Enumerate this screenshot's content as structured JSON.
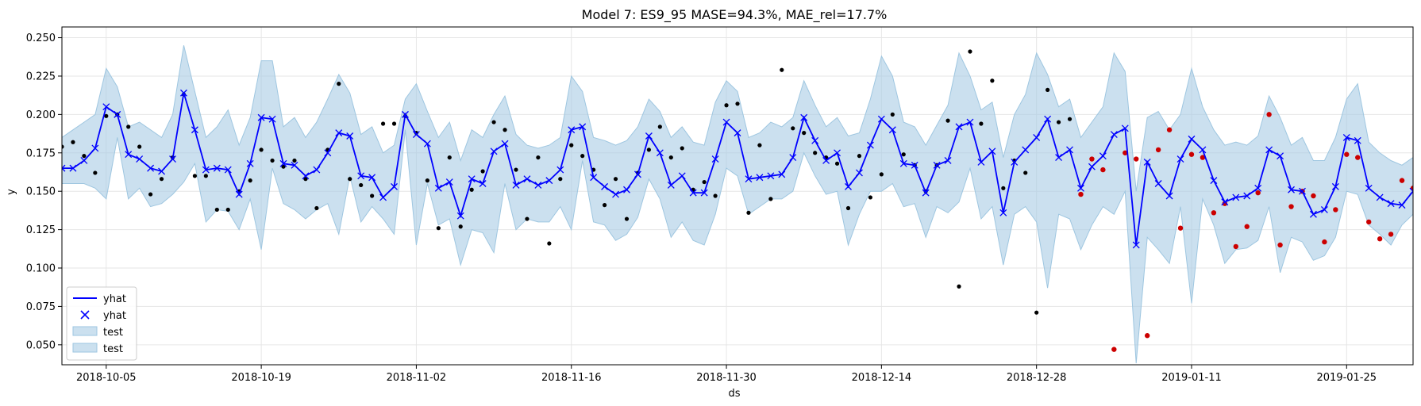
{
  "chart_data": {
    "type": "line",
    "title": "Model 7: ES9_95 MASE=94.3%, MAE_rel=17.7%",
    "xlabel": "ds",
    "ylabel": "y",
    "xlim": [
      "2018-10-01",
      "2019-01-31"
    ],
    "ylim": [
      0.037,
      0.257
    ],
    "grid": true,
    "legend_position": "lower-left",
    "x_ticks": [
      "2018-10-05",
      "2018-10-19",
      "2018-11-02",
      "2018-11-16",
      "2018-11-30",
      "2018-12-14",
      "2018-12-28",
      "2019-01-11",
      "2019-01-25"
    ],
    "y_ticks": [
      "0.050",
      "0.075",
      "0.100",
      "0.125",
      "0.150",
      "0.175",
      "0.200",
      "0.225",
      "0.250"
    ],
    "legend": [
      "yhat",
      "yhat",
      "test",
      "test"
    ],
    "colors": {
      "yhat": "#0000ff",
      "band_fill": "#a8cce4",
      "band_edge": "#9ec6e0",
      "actual": "#000000",
      "test_actual": "#cc0000",
      "grid": "#e6e6e6"
    },
    "start_date": "2018-10-01",
    "yhat": [
      0.165,
      0.165,
      0.17,
      0.178,
      0.205,
      0.2,
      0.174,
      0.171,
      0.165,
      0.163,
      0.171,
      0.214,
      0.19,
      0.164,
      0.165,
      0.164,
      0.148,
      0.168,
      0.198,
      0.197,
      0.168,
      0.167,
      0.16,
      0.164,
      0.175,
      0.188,
      0.186,
      0.16,
      0.159,
      0.146,
      0.153,
      0.2,
      0.187,
      0.181,
      0.152,
      0.156,
      0.134,
      0.158,
      0.155,
      0.176,
      0.181,
      0.154,
      0.158,
      0.154,
      0.157,
      0.164,
      0.19,
      0.192,
      0.159,
      0.153,
      0.148,
      0.151,
      0.161,
      0.186,
      0.175,
      0.154,
      0.16,
      0.149,
      0.149,
      0.171,
      0.195,
      0.188,
      0.158,
      0.159,
      0.16,
      0.161,
      0.172,
      0.198,
      0.183,
      0.17,
      0.175,
      0.153,
      0.162,
      0.18,
      0.197,
      0.19,
      0.168,
      0.167,
      0.149,
      0.167,
      0.17,
      0.192,
      0.195,
      0.169,
      0.176,
      0.136,
      0.169,
      0.177,
      0.185,
      0.197,
      0.172,
      0.177,
      0.152,
      0.166,
      0.173,
      0.187,
      0.191,
      0.115,
      0.169,
      0.155,
      0.147,
      0.171,
      0.184,
      0.177,
      0.157,
      0.143,
      0.146,
      0.147,
      0.152,
      0.177,
      0.173,
      0.151,
      0.15,
      0.135,
      0.138,
      0.153,
      0.185,
      0.183,
      0.152,
      0.146,
      0.142,
      0.141,
      0.15
    ],
    "upper": [
      0.185,
      0.19,
      0.195,
      0.2,
      0.23,
      0.218,
      0.192,
      0.195,
      0.19,
      0.185,
      0.2,
      0.245,
      0.215,
      0.185,
      0.192,
      0.203,
      0.18,
      0.198,
      0.235,
      0.235,
      0.192,
      0.198,
      0.185,
      0.195,
      0.21,
      0.226,
      0.214,
      0.187,
      0.192,
      0.175,
      0.18,
      0.21,
      0.22,
      0.202,
      0.185,
      0.195,
      0.17,
      0.19,
      0.185,
      0.2,
      0.212,
      0.187,
      0.18,
      0.178,
      0.18,
      0.185,
      0.225,
      0.215,
      0.185,
      0.183,
      0.18,
      0.183,
      0.192,
      0.21,
      0.202,
      0.185,
      0.192,
      0.182,
      0.18,
      0.208,
      0.222,
      0.215,
      0.185,
      0.188,
      0.195,
      0.192,
      0.198,
      0.222,
      0.206,
      0.192,
      0.198,
      0.186,
      0.188,
      0.21,
      0.238,
      0.225,
      0.195,
      0.192,
      0.18,
      0.193,
      0.206,
      0.24,
      0.225,
      0.203,
      0.208,
      0.172,
      0.2,
      0.213,
      0.24,
      0.226,
      0.205,
      0.21,
      0.185,
      0.195,
      0.205,
      0.24,
      0.228,
      0.15,
      0.198,
      0.202,
      0.19,
      0.2,
      0.23,
      0.205,
      0.19,
      0.18,
      0.182,
      0.18,
      0.186,
      0.212,
      0.198,
      0.18,
      0.185,
      0.17,
      0.17,
      0.185,
      0.21,
      0.22,
      0.182,
      0.175,
      0.17,
      0.167,
      0.172
    ],
    "lower": [
      0.155,
      0.155,
      0.155,
      0.152,
      0.145,
      0.185,
      0.145,
      0.152,
      0.14,
      0.142,
      0.148,
      0.156,
      0.168,
      0.13,
      0.138,
      0.137,
      0.125,
      0.145,
      0.112,
      0.165,
      0.142,
      0.138,
      0.132,
      0.138,
      0.142,
      0.122,
      0.16,
      0.13,
      0.14,
      0.132,
      0.122,
      0.19,
      0.115,
      0.155,
      0.128,
      0.132,
      0.102,
      0.125,
      0.123,
      0.11,
      0.155,
      0.125,
      0.132,
      0.13,
      0.13,
      0.14,
      0.125,
      0.17,
      0.13,
      0.128,
      0.118,
      0.122,
      0.133,
      0.158,
      0.145,
      0.12,
      0.13,
      0.118,
      0.115,
      0.135,
      0.165,
      0.16,
      0.135,
      0.14,
      0.145,
      0.145,
      0.15,
      0.175,
      0.16,
      0.148,
      0.15,
      0.115,
      0.135,
      0.15,
      0.15,
      0.155,
      0.14,
      0.142,
      0.12,
      0.14,
      0.136,
      0.143,
      0.165,
      0.132,
      0.14,
      0.102,
      0.135,
      0.14,
      0.13,
      0.087,
      0.135,
      0.132,
      0.112,
      0.128,
      0.14,
      0.135,
      0.15,
      0.038,
      0.12,
      0.112,
      0.103,
      0.14,
      0.077,
      0.145,
      0.128,
      0.103,
      0.112,
      0.113,
      0.118,
      0.14,
      0.097,
      0.12,
      0.117,
      0.105,
      0.108,
      0.12,
      0.15,
      0.148,
      0.128,
      0.122,
      0.115,
      0.128,
      0.135
    ],
    "actual_points": [
      {
        "x": 0,
        "y": 0.179
      },
      {
        "x": 1,
        "y": 0.182
      },
      {
        "x": 2,
        "y": 0.173
      },
      {
        "x": 3,
        "y": 0.162
      },
      {
        "x": 4,
        "y": 0.199
      },
      {
        "x": 5,
        "y": 0.2
      },
      {
        "x": 6,
        "y": 0.192
      },
      {
        "x": 7,
        "y": 0.179
      },
      {
        "x": 8,
        "y": 0.148
      },
      {
        "x": 9,
        "y": 0.158
      },
      {
        "x": 10,
        "y": 0.172
      },
      {
        "x": 11,
        "y": 0.213
      },
      {
        "x": 12,
        "y": 0.16
      },
      {
        "x": 13,
        "y": 0.16
      },
      {
        "x": 14,
        "y": 0.138
      },
      {
        "x": 15,
        "y": 0.138
      },
      {
        "x": 16,
        "y": 0.15
      },
      {
        "x": 17,
        "y": 0.157
      },
      {
        "x": 18,
        "y": 0.177
      },
      {
        "x": 19,
        "y": 0.17
      },
      {
        "x": 20,
        "y": 0.166
      },
      {
        "x": 21,
        "y": 0.17
      },
      {
        "x": 22,
        "y": 0.158
      },
      {
        "x": 23,
        "y": 0.139
      },
      {
        "x": 24,
        "y": 0.177
      },
      {
        "x": 25,
        "y": 0.22
      },
      {
        "x": 26,
        "y": 0.158
      },
      {
        "x": 27,
        "y": 0.154
      },
      {
        "x": 28,
        "y": 0.147
      },
      {
        "x": 29,
        "y": 0.194
      },
      {
        "x": 30,
        "y": 0.194
      },
      {
        "x": 31,
        "y": 0.199
      },
      {
        "x": 32,
        "y": 0.188
      },
      {
        "x": 33,
        "y": 0.157
      },
      {
        "x": 34,
        "y": 0.126
      },
      {
        "x": 35,
        "y": 0.172
      },
      {
        "x": 36,
        "y": 0.127
      },
      {
        "x": 37,
        "y": 0.151
      },
      {
        "x": 38,
        "y": 0.163
      },
      {
        "x": 39,
        "y": 0.195
      },
      {
        "x": 40,
        "y": 0.19
      },
      {
        "x": 41,
        "y": 0.164
      },
      {
        "x": 42,
        "y": 0.132
      },
      {
        "x": 43,
        "y": 0.172
      },
      {
        "x": 44,
        "y": 0.116
      },
      {
        "x": 45,
        "y": 0.158
      },
      {
        "x": 46,
        "y": 0.18
      },
      {
        "x": 47,
        "y": 0.173
      },
      {
        "x": 48,
        "y": 0.164
      },
      {
        "x": 49,
        "y": 0.141
      },
      {
        "x": 50,
        "y": 0.158
      },
      {
        "x": 51,
        "y": 0.132
      },
      {
        "x": 52,
        "y": 0.162
      },
      {
        "x": 53,
        "y": 0.177
      },
      {
        "x": 54,
        "y": 0.192
      },
      {
        "x": 55,
        "y": 0.172
      },
      {
        "x": 56,
        "y": 0.178
      },
      {
        "x": 57,
        "y": 0.151
      },
      {
        "x": 58,
        "y": 0.156
      },
      {
        "x": 59,
        "y": 0.147
      },
      {
        "x": 60,
        "y": 0.206
      },
      {
        "x": 61,
        "y": 0.207
      },
      {
        "x": 62,
        "y": 0.136
      },
      {
        "x": 63,
        "y": 0.18
      },
      {
        "x": 64,
        "y": 0.145
      },
      {
        "x": 65,
        "y": 0.229
      },
      {
        "x": 66,
        "y": 0.191
      },
      {
        "x": 67,
        "y": 0.188
      },
      {
        "x": 68,
        "y": 0.175
      },
      {
        "x": 69,
        "y": 0.172
      },
      {
        "x": 70,
        "y": 0.168
      },
      {
        "x": 71,
        "y": 0.139
      },
      {
        "x": 72,
        "y": 0.173
      },
      {
        "x": 73,
        "y": 0.146
      },
      {
        "x": 74,
        "y": 0.161
      },
      {
        "x": 75,
        "y": 0.2
      },
      {
        "x": 76,
        "y": 0.174
      },
      {
        "x": 77,
        "y": 0.167
      },
      {
        "x": 78,
        "y": 0.15
      },
      {
        "x": 79,
        "y": 0.167
      },
      {
        "x": 80,
        "y": 0.196
      },
      {
        "x": 81,
        "y": 0.088
      },
      {
        "x": 82,
        "y": 0.241
      },
      {
        "x": 83,
        "y": 0.194
      },
      {
        "x": 84,
        "y": 0.222
      },
      {
        "x": 85,
        "y": 0.152
      },
      {
        "x": 86,
        "y": 0.17
      },
      {
        "x": 87,
        "y": 0.162
      },
      {
        "x": 88,
        "y": 0.071
      },
      {
        "x": 89,
        "y": 0.216
      },
      {
        "x": 90,
        "y": 0.195
      },
      {
        "x": 91,
        "y": 0.197
      }
    ],
    "test_points": [
      {
        "x": 92,
        "y": 0.148
      },
      {
        "x": 93,
        "y": 0.171
      },
      {
        "x": 94,
        "y": 0.164
      },
      {
        "x": 95,
        "y": 0.047
      },
      {
        "x": 96,
        "y": 0.175
      },
      {
        "x": 97,
        "y": 0.171
      },
      {
        "x": 98,
        "y": 0.056
      },
      {
        "x": 99,
        "y": 0.177
      },
      {
        "x": 100,
        "y": 0.19
      },
      {
        "x": 101,
        "y": 0.126
      },
      {
        "x": 102,
        "y": 0.174
      },
      {
        "x": 103,
        "y": 0.172
      },
      {
        "x": 104,
        "y": 0.136
      },
      {
        "x": 105,
        "y": 0.142
      },
      {
        "x": 106,
        "y": 0.114
      },
      {
        "x": 107,
        "y": 0.127
      },
      {
        "x": 108,
        "y": 0.149
      },
      {
        "x": 109,
        "y": 0.2
      },
      {
        "x": 110,
        "y": 0.115
      },
      {
        "x": 111,
        "y": 0.14
      },
      {
        "x": 112,
        "y": 0.15
      },
      {
        "x": 113,
        "y": 0.147
      },
      {
        "x": 114,
        "y": 0.117
      },
      {
        "x": 115,
        "y": 0.138
      },
      {
        "x": 116,
        "y": 0.174
      },
      {
        "x": 117,
        "y": 0.172
      },
      {
        "x": 118,
        "y": 0.13
      },
      {
        "x": 119,
        "y": 0.119
      },
      {
        "x": 120,
        "y": 0.122
      },
      {
        "x": 121,
        "y": 0.157
      },
      {
        "x": 122,
        "y": 0.152
      }
    ]
  }
}
